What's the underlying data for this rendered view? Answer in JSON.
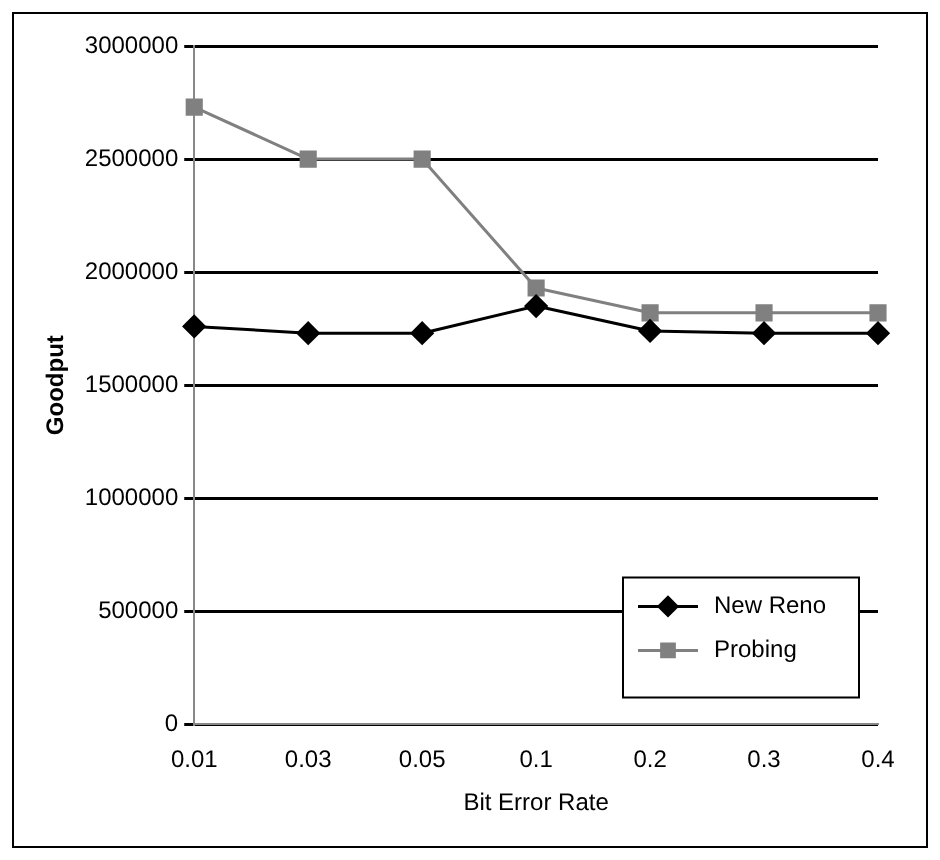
{
  "chart_data": {
    "type": "line",
    "xlabel": "Bit Error Rate",
    "ylabel": "Goodput",
    "categories": [
      "0.01",
      "0.03",
      "0.05",
      "0.1",
      "0.2",
      "0.3",
      "0.4"
    ],
    "series": [
      {
        "name": "New Reno",
        "color": "#000000",
        "marker": "diamond",
        "values": [
          1760000,
          1730000,
          1730000,
          1850000,
          1740000,
          1730000,
          1730000
        ]
      },
      {
        "name": "Probing",
        "color": "#808080",
        "marker": "square",
        "values": [
          2730000,
          2500000,
          2500000,
          1930000,
          1820000,
          1820000,
          1820000
        ]
      }
    ],
    "ylim": [
      0,
      3000000
    ],
    "yticks": [
      0,
      500000,
      1000000,
      1500000,
      2000000,
      2500000,
      3000000
    ],
    "grid": "y",
    "legend": "bottom right"
  }
}
